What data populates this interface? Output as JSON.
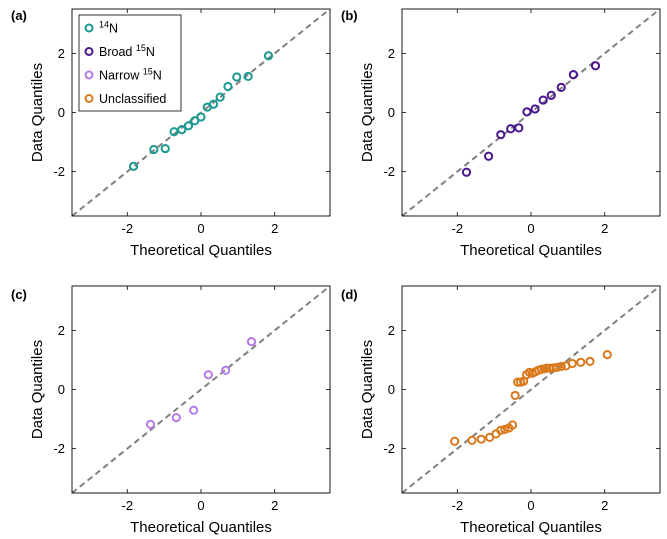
{
  "panel_labels": [
    "(a)",
    "(b)",
    "(c)",
    "(d)"
  ],
  "legend": {
    "placement": "top-left of panel (a)",
    "entries": [
      {
        "pre": "",
        "sup": "14",
        "post": "N",
        "color": "#1a9a92"
      },
      {
        "pre": "Broad ",
        "sup": "15",
        "post": "N",
        "color": "#4b1590"
      },
      {
        "pre": "Narrow ",
        "sup": "15",
        "post": "N",
        "color": "#b57be8"
      },
      {
        "pre": "Unclassified",
        "sup": "",
        "post": "",
        "color": "#d9791c"
      }
    ]
  },
  "colors": {
    "reference_line": "#808080",
    "14N": "#1a9a92",
    "broad_15N": "#4b1590",
    "narrow_15N": "#b57be8",
    "unclassified": "#d9791c"
  },
  "chart_data": [
    {
      "type": "scatter",
      "panel": "(a)",
      "xlabel": "Theoretical Quantiles",
      "ylabel": "Data Quantiles",
      "xlim": [
        -3.5,
        3.5
      ],
      "ylim": [
        -3.5,
        3.5
      ],
      "xticks": [
        -2,
        0,
        2
      ],
      "yticks": [
        -2,
        0,
        2
      ],
      "reference_line": "y = x (dashed)",
      "grid": false,
      "series": [
        {
          "name": "14N",
          "color": "#1a9a92",
          "x": [
            -1.83,
            -1.28,
            -0.97,
            -0.73,
            -0.52,
            -0.34,
            -0.17,
            0.0,
            0.17,
            0.34,
            0.52,
            0.73,
            0.97,
            1.28,
            1.83
          ],
          "y": [
            -1.82,
            -1.25,
            -1.22,
            -0.65,
            -0.58,
            -0.45,
            -0.28,
            -0.15,
            0.18,
            0.28,
            0.52,
            0.88,
            1.2,
            1.22,
            1.92
          ]
        }
      ]
    },
    {
      "type": "scatter",
      "panel": "(b)",
      "xlabel": "Theoretical Quantiles",
      "ylabel": "Data Quantiles",
      "xlim": [
        -3.5,
        3.5
      ],
      "ylim": [
        -3.5,
        3.5
      ],
      "xticks": [
        -2,
        0,
        2
      ],
      "yticks": [
        -2,
        0,
        2
      ],
      "reference_line": "y = x (dashed)",
      "grid": false,
      "series": [
        {
          "name": "Broad 15N",
          "color": "#4b1590",
          "x": [
            -1.75,
            -1.15,
            -0.82,
            -0.55,
            -0.33,
            -0.11,
            0.11,
            0.33,
            0.55,
            0.82,
            1.15,
            1.75
          ],
          "y": [
            -2.02,
            -1.48,
            -0.75,
            -0.55,
            -0.52,
            0.02,
            0.12,
            0.42,
            0.58,
            0.85,
            1.28,
            1.58
          ]
        }
      ]
    },
    {
      "type": "scatter",
      "panel": "(c)",
      "xlabel": "Theoretical Quantiles",
      "ylabel": "Data Quantiles",
      "xlim": [
        -3.5,
        3.5
      ],
      "ylim": [
        -3.5,
        3.5
      ],
      "xticks": [
        -2,
        0,
        2
      ],
      "yticks": [
        -2,
        0,
        2
      ],
      "reference_line": "y = x (dashed)",
      "grid": false,
      "series": [
        {
          "name": "Narrow 15N",
          "color": "#b57be8",
          "x": [
            -1.37,
            -0.67,
            -0.2,
            0.2,
            0.67,
            1.37
          ],
          "y": [
            -1.18,
            -0.95,
            -0.7,
            0.5,
            0.65,
            1.62
          ]
        }
      ]
    },
    {
      "type": "scatter",
      "panel": "(d)",
      "xlabel": "Theoretical Quantiles",
      "ylabel": "Data Quantiles",
      "xlim": [
        -3.5,
        3.5
      ],
      "ylim": [
        -3.5,
        3.5
      ],
      "xticks": [
        -2,
        0,
        2
      ],
      "yticks": [
        -2,
        0,
        2
      ],
      "reference_line": "y = x (dashed)",
      "grid": false,
      "series": [
        {
          "name": "Unclassified",
          "color": "#d9791c",
          "x": [
            -2.07,
            -1.6,
            -1.35,
            -1.12,
            -0.95,
            -0.82,
            -0.71,
            -0.6,
            -0.5,
            -0.43,
            -0.36,
            -0.28,
            -0.2,
            -0.12,
            -0.04,
            0.04,
            0.12,
            0.2,
            0.28,
            0.36,
            0.43,
            0.5,
            0.6,
            0.71,
            0.82,
            0.95,
            1.12,
            1.35,
            1.6,
            2.07
          ],
          "y": [
            -1.75,
            -1.72,
            -1.68,
            -1.62,
            -1.5,
            -1.38,
            -1.35,
            -1.3,
            -1.2,
            -0.2,
            0.25,
            0.25,
            0.28,
            0.5,
            0.58,
            0.55,
            0.6,
            0.65,
            0.68,
            0.7,
            0.72,
            0.72,
            0.73,
            0.75,
            0.78,
            0.8,
            0.88,
            0.92,
            0.95,
            1.18
          ]
        }
      ]
    }
  ]
}
